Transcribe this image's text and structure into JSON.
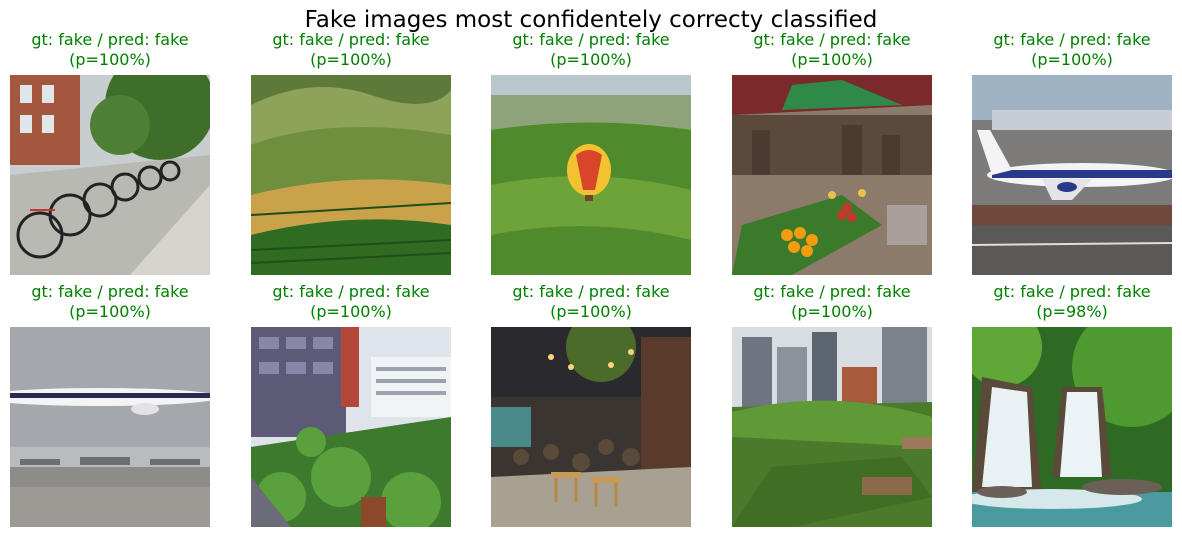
{
  "figure": {
    "title": "Fake images most confidentely correcty classified",
    "panels": [
      {
        "caption_line1": "gt: fake / pred: fake",
        "caption_line2": "(p=100%)",
        "image": "bicycles-parked-on-city-street"
      },
      {
        "caption_line1": "gt: fake / pred: fake",
        "caption_line2": "(p=100%)",
        "image": "vineyard-rolling-hills"
      },
      {
        "caption_line1": "gt: fake / pred: fake",
        "caption_line2": "(p=100%)",
        "image": "hot-air-balloon-over-green-fields"
      },
      {
        "caption_line1": "gt: fake / pred: fake",
        "caption_line2": "(p=100%)",
        "image": "outdoor-fruit-market"
      },
      {
        "caption_line1": "gt: fake / pred: fake",
        "caption_line2": "(p=100%)",
        "image": "airliner-on-runway"
      },
      {
        "caption_line1": "gt: fake / pred: fake",
        "caption_line2": "(p=100%)",
        "image": "airliner-flying-over-airport"
      },
      {
        "caption_line1": "gt: fake / pred: fake",
        "caption_line2": "(p=100%)",
        "image": "rooftop-garden-with-buildings"
      },
      {
        "caption_line1": "gt: fake / pred: fake",
        "caption_line2": "(p=100%)",
        "image": "outdoor-cafe-street-with-lights"
      },
      {
        "caption_line1": "gt: fake / pred: fake",
        "caption_line2": "(p=100%)",
        "image": "rooftop-terrace-city-skyline"
      },
      {
        "caption_line1": "gt: fake / pred: fake",
        "caption_line2": "(p=98%)",
        "image": "waterfall-in-forest"
      }
    ]
  }
}
